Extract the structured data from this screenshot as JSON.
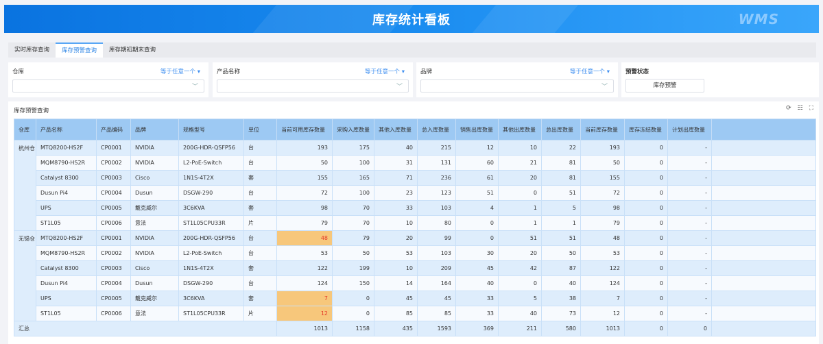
{
  "banner": {
    "title": "库存统计看板",
    "logo": "WMS"
  },
  "tabs": [
    {
      "label": "实时库存查询",
      "active": false
    },
    {
      "label": "库存预警查询",
      "active": true
    },
    {
      "label": "库存期初期末查询",
      "active": false
    }
  ],
  "filters": [
    {
      "label": "仓库",
      "operator": "等于任意一个 ▾",
      "value": ""
    },
    {
      "label": "产品名称",
      "operator": "等于任意一个 ▾",
      "value": ""
    },
    {
      "label": "品牌",
      "operator": "等于任意一个 ▾",
      "value": ""
    }
  ],
  "warning_filter": {
    "label": "预警状态",
    "button": "库存预警"
  },
  "table": {
    "title": "库存预警查询",
    "toolbar_icons": [
      "refresh-icon",
      "column-settings-icon",
      "fullscreen-icon"
    ],
    "columns": [
      "仓库",
      "产品名称",
      "产品编码",
      "品牌",
      "规格型号",
      "单位",
      "当前可用库存数量",
      "采购入库数量",
      "其他入库数量",
      "总入库数量",
      "销售出库数量",
      "其他出库数量",
      "总出库数量",
      "当前库存数量",
      "库存冻结数量",
      "计划出库数量"
    ],
    "groups": [
      {
        "warehouse": "杭州仓",
        "rows": [
          [
            "MTQ8200-HS2F",
            "CP0001",
            "NVIDIA",
            "200G-HDR-QSFP56",
            "台",
            "193",
            "175",
            "40",
            "215",
            "12",
            "10",
            "22",
            "193",
            "0",
            "-"
          ],
          [
            "MQM8790-HS2R",
            "CP0002",
            "NVIDIA",
            "L2-PoE-Switch",
            "台",
            "50",
            "100",
            "31",
            "131",
            "60",
            "21",
            "81",
            "50",
            "0",
            "-"
          ],
          [
            "Catalyst 8300",
            "CP0003",
            "Cisco",
            "1N1S-4T2X",
            "套",
            "155",
            "165",
            "71",
            "236",
            "61",
            "20",
            "81",
            "155",
            "0",
            "-"
          ],
          [
            "Dusun Pi4",
            "CP0004",
            "Dusun",
            "DSGW-290",
            "台",
            "72",
            "100",
            "23",
            "123",
            "51",
            "0",
            "51",
            "72",
            "0",
            "-"
          ],
          [
            "UPS",
            "CP0005",
            "戴克威尔",
            "3C6KVA",
            "套",
            "98",
            "70",
            "33",
            "103",
            "4",
            "1",
            "5",
            "98",
            "0",
            "-"
          ],
          [
            "ST1L05",
            "CP0006",
            "意法",
            "ST1L05CPU33R",
            "片",
            "79",
            "70",
            "10",
            "80",
            "0",
            "1",
            "1",
            "79",
            "0",
            "-"
          ]
        ],
        "warnings": [
          false,
          false,
          false,
          false,
          false,
          false
        ]
      },
      {
        "warehouse": "无锡仓",
        "rows": [
          [
            "MTQ8200-HS2F",
            "CP0001",
            "NVIDIA",
            "200G-HDR-QSFP56",
            "台",
            "48",
            "79",
            "20",
            "99",
            "0",
            "51",
            "51",
            "48",
            "0",
            "-"
          ],
          [
            "MQM8790-HS2R",
            "CP0002",
            "NVIDIA",
            "L2-PoE-Switch",
            "台",
            "53",
            "50",
            "53",
            "103",
            "30",
            "20",
            "50",
            "53",
            "0",
            "-"
          ],
          [
            "Catalyst 8300",
            "CP0003",
            "Cisco",
            "1N1S-4T2X",
            "套",
            "122",
            "199",
            "10",
            "209",
            "45",
            "42",
            "87",
            "122",
            "0",
            "-"
          ],
          [
            "Dusun Pi4",
            "CP0004",
            "Dusun",
            "DSGW-290",
            "台",
            "124",
            "150",
            "14",
            "164",
            "40",
            "0",
            "40",
            "124",
            "0",
            "-"
          ],
          [
            "UPS",
            "CP0005",
            "戴克威尔",
            "3C6KVA",
            "套",
            "7",
            "0",
            "45",
            "45",
            "33",
            "5",
            "38",
            "7",
            "0",
            "-"
          ],
          [
            "ST1L05",
            "CP0006",
            "意法",
            "ST1L05CPU33R",
            "片",
            "12",
            "0",
            "85",
            "85",
            "33",
            "40",
            "73",
            "12",
            "0",
            "-"
          ]
        ],
        "warnings": [
          true,
          false,
          false,
          false,
          true,
          true
        ]
      }
    ],
    "summary": {
      "label": "汇总",
      "values": [
        "1013",
        "1158",
        "435",
        "1593",
        "369",
        "211",
        "580",
        "1013",
        "0",
        "0"
      ]
    },
    "colors": {
      "header": "#9dc9f3",
      "warning_bg": "#f7c77b",
      "warning_text": "#e53a2a",
      "accent": "#2f86e6"
    }
  }
}
